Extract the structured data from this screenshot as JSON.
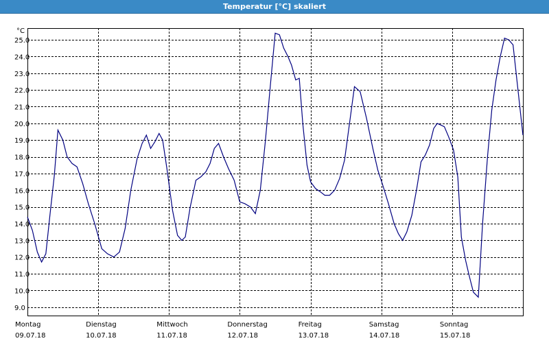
{
  "window": {
    "title": "Temperatur [°C] skaliert"
  },
  "chart_data": {
    "type": "line",
    "title": "Temperatur [°C] skaliert",
    "ylabel": "°C",
    "xlabel": "",
    "ylim": [
      9.0,
      25.0
    ],
    "yticks": [
      9.0,
      10.0,
      11.0,
      12.0,
      13.0,
      14.0,
      15.0,
      16.0,
      17.0,
      18.0,
      19.0,
      20.0,
      21.0,
      22.0,
      23.0,
      24.0,
      25.0
    ],
    "xlim": [
      0,
      7
    ],
    "grid": true,
    "x_axis": {
      "days": [
        {
          "weekday": "Montag",
          "date": "09.07.18"
        },
        {
          "weekday": "Dienstag",
          "date": "10.07.18"
        },
        {
          "weekday": "Mittwoch",
          "date": "11.07.18"
        },
        {
          "weekday": "Donnerstag",
          "date": "12.07.18"
        },
        {
          "weekday": "Freitag",
          "date": "13.07.18"
        },
        {
          "weekday": "Samstag",
          "date": "14.07.18"
        },
        {
          "weekday": "Sonntag",
          "date": "15.07.18"
        }
      ]
    },
    "series": [
      {
        "color": "#000080",
        "x": [
          0.0,
          0.07,
          0.14,
          0.2,
          0.26,
          0.32,
          0.38,
          0.43,
          0.5,
          0.56,
          0.63,
          0.7,
          0.78,
          0.86,
          0.95,
          1.05,
          1.13,
          1.22,
          1.3,
          1.38,
          1.46,
          1.55,
          1.62,
          1.68,
          1.74,
          1.8,
          1.86,
          1.91,
          1.97,
          2.05,
          2.12,
          2.18,
          2.23,
          2.3,
          2.38,
          2.45,
          2.52,
          2.58,
          2.64,
          2.7,
          2.77,
          2.84,
          2.92,
          3.0,
          3.07,
          3.15,
          3.22,
          3.29,
          3.36,
          3.43,
          3.5,
          3.56,
          3.62,
          3.68,
          3.73,
          3.79,
          3.84,
          3.89,
          3.95,
          4.0,
          4.07,
          4.14,
          4.2,
          4.27,
          4.34,
          4.41,
          4.48,
          4.55,
          4.62,
          4.7,
          4.79,
          4.88,
          4.95,
          5.02,
          5.1,
          5.18,
          5.24,
          5.3,
          5.36,
          5.43,
          5.5,
          5.56,
          5.62,
          5.68,
          5.74,
          5.79,
          5.84,
          5.89,
          5.95,
          6.02,
          6.08,
          6.13,
          6.19,
          6.24,
          6.3,
          6.37,
          6.43,
          6.5,
          6.56,
          6.62,
          6.68,
          6.74,
          6.8,
          6.86,
          6.93,
          7.0
        ],
        "y": [
          14.4,
          13.6,
          12.3,
          11.7,
          12.2,
          14.6,
          16.9,
          19.6,
          19.0,
          18.0,
          17.6,
          17.4,
          16.4,
          15.2,
          14.0,
          12.5,
          12.2,
          12.0,
          12.3,
          13.7,
          16.0,
          17.9,
          18.8,
          19.3,
          18.5,
          18.9,
          19.4,
          19.0,
          17.3,
          14.8,
          13.3,
          13.0,
          13.2,
          15.0,
          16.6,
          16.8,
          17.1,
          17.6,
          18.5,
          18.8,
          18.0,
          17.3,
          16.6,
          15.3,
          15.2,
          15.0,
          14.6,
          16.0,
          18.9,
          22.2,
          25.4,
          25.3,
          24.5,
          24.0,
          23.5,
          22.6,
          22.7,
          20.0,
          17.5,
          16.5,
          16.1,
          15.9,
          15.7,
          15.7,
          16.0,
          16.7,
          17.8,
          20.0,
          22.2,
          21.9,
          20.3,
          18.5,
          17.2,
          16.3,
          15.2,
          14.0,
          13.4,
          13.0,
          13.5,
          14.5,
          16.1,
          17.7,
          18.1,
          18.7,
          19.7,
          20.0,
          19.9,
          19.8,
          19.2,
          18.4,
          16.8,
          13.2,
          11.8,
          10.9,
          9.9,
          9.6,
          14.0,
          18.0,
          20.8,
          22.6,
          24.0,
          25.1,
          25.0,
          24.7,
          22.0,
          19.3
        ]
      }
    ]
  }
}
